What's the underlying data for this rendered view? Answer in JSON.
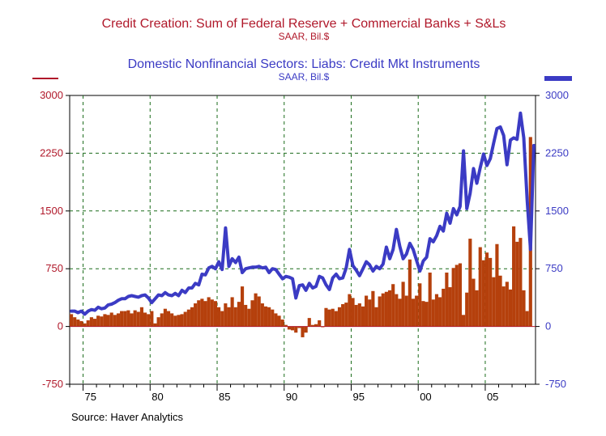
{
  "chart_data": {
    "type": "bar+line",
    "source": "Source: Haver Analytics",
    "series": [
      {
        "name": "Credit Creation: Sum of Federal Reserve + Commercial Banks + S&Ls",
        "unit": "SAAR, Bil.$",
        "mark": "bar",
        "color": "#b0182a",
        "fill": "#b5400c",
        "axis": "left"
      },
      {
        "name": "Domestic Nonfinancial Sectors: Liabs: Credit Mkt Instruments",
        "unit": "SAAR, Bil.$",
        "mark": "line",
        "color": "#3b3bc4",
        "axis": "right"
      }
    ],
    "x_axis": {
      "range": [
        1974.0,
        2008.75
      ],
      "ticks": [
        1975,
        1980,
        1985,
        1990,
        1995,
        2000,
        2005
      ],
      "tick_labels": [
        "75",
        "80",
        "85",
        "90",
        "95",
        "00",
        "05"
      ]
    },
    "y_left": {
      "range": [
        -750,
        3000
      ],
      "ticks": [
        3000,
        2250,
        1500,
        750,
        0,
        -750
      ],
      "tick_labels": [
        "3000",
        "2250",
        "1500",
        "750",
        "0",
        "-750"
      ]
    },
    "y_right": {
      "range": [
        -750,
        3000
      ],
      "ticks": [
        3000,
        2250,
        1500,
        750,
        0,
        -750
      ],
      "tick_labels": [
        "3000",
        "2250",
        "1500",
        "750",
        "0",
        "-750"
      ]
    },
    "grid": true,
    "bar_points": [
      [
        1974.0,
        160
      ],
      [
        1974.25,
        120
      ],
      [
        1974.5,
        90
      ],
      [
        1974.75,
        70
      ],
      [
        1975.0,
        40
      ],
      [
        1975.25,
        80
      ],
      [
        1975.5,
        120
      ],
      [
        1975.75,
        100
      ],
      [
        1976.0,
        140
      ],
      [
        1976.25,
        130
      ],
      [
        1976.5,
        160
      ],
      [
        1976.75,
        150
      ],
      [
        1977.0,
        180
      ],
      [
        1977.25,
        150
      ],
      [
        1977.5,
        170
      ],
      [
        1977.75,
        200
      ],
      [
        1978.0,
        200
      ],
      [
        1978.25,
        210
      ],
      [
        1978.5,
        170
      ],
      [
        1978.75,
        210
      ],
      [
        1979.0,
        190
      ],
      [
        1979.25,
        250
      ],
      [
        1979.5,
        180
      ],
      [
        1979.75,
        160
      ],
      [
        1980.0,
        200
      ],
      [
        1980.25,
        40
      ],
      [
        1980.5,
        120
      ],
      [
        1980.75,
        170
      ],
      [
        1981.0,
        230
      ],
      [
        1981.25,
        200
      ],
      [
        1981.5,
        170
      ],
      [
        1981.75,
        140
      ],
      [
        1982.0,
        150
      ],
      [
        1982.25,
        160
      ],
      [
        1982.5,
        190
      ],
      [
        1982.75,
        220
      ],
      [
        1983.0,
        250
      ],
      [
        1983.25,
        300
      ],
      [
        1983.5,
        340
      ],
      [
        1983.75,
        360
      ],
      [
        1984.0,
        330
      ],
      [
        1984.25,
        380
      ],
      [
        1984.5,
        350
      ],
      [
        1984.75,
        330
      ],
      [
        1985.0,
        250
      ],
      [
        1985.25,
        200
      ],
      [
        1985.5,
        300
      ],
      [
        1985.75,
        250
      ],
      [
        1986.0,
        380
      ],
      [
        1986.25,
        250
      ],
      [
        1986.5,
        320
      ],
      [
        1986.75,
        520
      ],
      [
        1987.0,
        280
      ],
      [
        1987.25,
        230
      ],
      [
        1987.5,
        340
      ],
      [
        1987.75,
        430
      ],
      [
        1988.0,
        390
      ],
      [
        1988.25,
        300
      ],
      [
        1988.5,
        260
      ],
      [
        1988.75,
        250
      ],
      [
        1989.0,
        220
      ],
      [
        1989.25,
        170
      ],
      [
        1989.5,
        140
      ],
      [
        1989.75,
        90
      ],
      [
        1990.0,
        20
      ],
      [
        1990.25,
        -40
      ],
      [
        1990.5,
        -50
      ],
      [
        1990.75,
        -80
      ],
      [
        1991.0,
        -20
      ],
      [
        1991.25,
        -140
      ],
      [
        1991.5,
        -80
      ],
      [
        1991.75,
        110
      ],
      [
        1992.0,
        20
      ],
      [
        1992.25,
        30
      ],
      [
        1992.5,
        80
      ],
      [
        1992.75,
        -10
      ],
      [
        1993.0,
        240
      ],
      [
        1993.25,
        220
      ],
      [
        1993.5,
        230
      ],
      [
        1993.75,
        200
      ],
      [
        1994.0,
        250
      ],
      [
        1994.25,
        290
      ],
      [
        1994.5,
        310
      ],
      [
        1994.75,
        420
      ],
      [
        1995.0,
        370
      ],
      [
        1995.25,
        280
      ],
      [
        1995.5,
        300
      ],
      [
        1995.75,
        260
      ],
      [
        1996.0,
        400
      ],
      [
        1996.25,
        350
      ],
      [
        1996.5,
        460
      ],
      [
        1996.75,
        250
      ],
      [
        1997.0,
        390
      ],
      [
        1997.25,
        430
      ],
      [
        1997.5,
        450
      ],
      [
        1997.75,
        470
      ],
      [
        1998.0,
        550
      ],
      [
        1998.25,
        420
      ],
      [
        1998.5,
        360
      ],
      [
        1998.75,
        580
      ],
      [
        1999.0,
        400
      ],
      [
        1999.25,
        870
      ],
      [
        1999.5,
        360
      ],
      [
        1999.75,
        400
      ],
      [
        2000.0,
        560
      ],
      [
        2000.25,
        330
      ],
      [
        2000.5,
        320
      ],
      [
        2000.75,
        700
      ],
      [
        2001.0,
        350
      ],
      [
        2001.25,
        420
      ],
      [
        2001.5,
        380
      ],
      [
        2001.75,
        490
      ],
      [
        2002.0,
        700
      ],
      [
        2002.25,
        510
      ],
      [
        2002.5,
        760
      ],
      [
        2002.75,
        800
      ],
      [
        2003.0,
        820
      ],
      [
        2003.25,
        150
      ],
      [
        2003.5,
        440
      ],
      [
        2003.75,
        1140
      ],
      [
        2004.0,
        620
      ],
      [
        2004.25,
        470
      ],
      [
        2004.5,
        1030
      ],
      [
        2004.75,
        860
      ],
      [
        2005.0,
        960
      ],
      [
        2005.25,
        890
      ],
      [
        2005.5,
        640
      ],
      [
        2005.75,
        1070
      ],
      [
        2006.0,
        660
      ],
      [
        2006.25,
        520
      ],
      [
        2006.5,
        580
      ],
      [
        2006.75,
        480
      ],
      [
        2007.0,
        1300
      ],
      [
        2007.25,
        1100
      ],
      [
        2007.5,
        1150
      ],
      [
        2007.75,
        470
      ],
      [
        2008.0,
        200
      ],
      [
        2008.25,
        2460
      ]
    ],
    "line_points": [
      [
        1974.0,
        200
      ],
      [
        1974.25,
        200
      ],
      [
        1974.5,
        180
      ],
      [
        1974.75,
        200
      ],
      [
        1975.0,
        160
      ],
      [
        1975.25,
        200
      ],
      [
        1975.5,
        220
      ],
      [
        1975.75,
        210
      ],
      [
        1976.0,
        250
      ],
      [
        1976.25,
        230
      ],
      [
        1976.5,
        240
      ],
      [
        1976.75,
        280
      ],
      [
        1977.0,
        290
      ],
      [
        1977.25,
        310
      ],
      [
        1977.5,
        340
      ],
      [
        1977.75,
        360
      ],
      [
        1978.0,
        360
      ],
      [
        1978.25,
        390
      ],
      [
        1978.5,
        400
      ],
      [
        1978.75,
        390
      ],
      [
        1979.0,
        380
      ],
      [
        1979.25,
        400
      ],
      [
        1979.5,
        410
      ],
      [
        1979.75,
        370
      ],
      [
        1980.0,
        310
      ],
      [
        1980.25,
        360
      ],
      [
        1980.5,
        410
      ],
      [
        1980.75,
        400
      ],
      [
        1981.0,
        440
      ],
      [
        1981.25,
        410
      ],
      [
        1981.5,
        400
      ],
      [
        1981.75,
        430
      ],
      [
        1982.0,
        400
      ],
      [
        1982.25,
        470
      ],
      [
        1982.5,
        440
      ],
      [
        1982.75,
        500
      ],
      [
        1983.0,
        500
      ],
      [
        1983.25,
        560
      ],
      [
        1983.5,
        540
      ],
      [
        1983.75,
        680
      ],
      [
        1984.0,
        670
      ],
      [
        1984.25,
        760
      ],
      [
        1984.5,
        780
      ],
      [
        1984.75,
        750
      ],
      [
        1985.0,
        840
      ],
      [
        1985.25,
        740
      ],
      [
        1985.5,
        1280
      ],
      [
        1985.75,
        780
      ],
      [
        1986.0,
        880
      ],
      [
        1986.25,
        830
      ],
      [
        1986.5,
        900
      ],
      [
        1986.75,
        700
      ],
      [
        1987.0,
        750
      ],
      [
        1987.25,
        760
      ],
      [
        1987.5,
        770
      ],
      [
        1987.75,
        770
      ],
      [
        1988.0,
        780
      ],
      [
        1988.25,
        760
      ],
      [
        1988.5,
        770
      ],
      [
        1988.75,
        700
      ],
      [
        1989.0,
        750
      ],
      [
        1989.25,
        740
      ],
      [
        1989.5,
        680
      ],
      [
        1989.75,
        620
      ],
      [
        1990.0,
        650
      ],
      [
        1990.25,
        640
      ],
      [
        1990.5,
        620
      ],
      [
        1990.75,
        370
      ],
      [
        1991.0,
        530
      ],
      [
        1991.25,
        540
      ],
      [
        1991.5,
        470
      ],
      [
        1991.75,
        560
      ],
      [
        1992.0,
        500
      ],
      [
        1992.25,
        520
      ],
      [
        1992.5,
        650
      ],
      [
        1992.75,
        630
      ],
      [
        1993.0,
        540
      ],
      [
        1993.25,
        480
      ],
      [
        1993.5,
        630
      ],
      [
        1993.75,
        680
      ],
      [
        1994.0,
        620
      ],
      [
        1994.25,
        630
      ],
      [
        1994.5,
        760
      ],
      [
        1994.75,
        1000
      ],
      [
        1995.0,
        790
      ],
      [
        1995.25,
        730
      ],
      [
        1995.5,
        660
      ],
      [
        1995.75,
        750
      ],
      [
        1996.0,
        840
      ],
      [
        1996.25,
        800
      ],
      [
        1996.5,
        720
      ],
      [
        1996.75,
        780
      ],
      [
        1997.0,
        750
      ],
      [
        1997.25,
        810
      ],
      [
        1997.5,
        1030
      ],
      [
        1997.75,
        880
      ],
      [
        1998.0,
        1000
      ],
      [
        1998.25,
        1260
      ],
      [
        1998.5,
        1040
      ],
      [
        1998.75,
        880
      ],
      [
        1999.0,
        940
      ],
      [
        1999.25,
        1080
      ],
      [
        1999.5,
        1000
      ],
      [
        1999.75,
        860
      ],
      [
        2000.0,
        720
      ],
      [
        2000.25,
        850
      ],
      [
        2000.5,
        900
      ],
      [
        2000.75,
        1140
      ],
      [
        2001.0,
        1100
      ],
      [
        2001.25,
        1180
      ],
      [
        2001.5,
        1300
      ],
      [
        2001.75,
        1240
      ],
      [
        2002.0,
        1470
      ],
      [
        2002.25,
        1340
      ],
      [
        2002.5,
        1530
      ],
      [
        2002.75,
        1450
      ],
      [
        2003.0,
        1560
      ],
      [
        2003.25,
        2280
      ],
      [
        2003.5,
        1530
      ],
      [
        2003.75,
        1730
      ],
      [
        2004.0,
        2050
      ],
      [
        2004.25,
        1860
      ],
      [
        2004.5,
        2060
      ],
      [
        2004.75,
        2240
      ],
      [
        2005.0,
        2090
      ],
      [
        2005.25,
        2180
      ],
      [
        2005.5,
        2380
      ],
      [
        2005.75,
        2570
      ],
      [
        2006.0,
        2590
      ],
      [
        2006.25,
        2480
      ],
      [
        2006.5,
        2100
      ],
      [
        2006.75,
        2420
      ],
      [
        2007.0,
        2450
      ],
      [
        2007.25,
        2430
      ],
      [
        2007.5,
        2770
      ],
      [
        2007.75,
        2450
      ],
      [
        2008.0,
        1640
      ],
      [
        2008.25,
        1000
      ],
      [
        2008.5,
        2350
      ]
    ]
  }
}
